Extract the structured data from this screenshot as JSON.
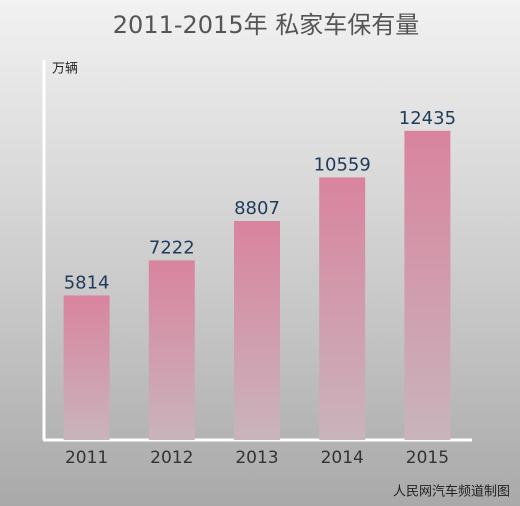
{
  "chart_data": {
    "type": "bar",
    "title": "2011-2015年 私家车保有量",
    "y_label": "万辆",
    "source": "人民网汽车频道制图",
    "categories": [
      "2011",
      "2012",
      "2013",
      "2014",
      "2015"
    ],
    "values": [
      5814,
      7222,
      8807,
      10559,
      12435
    ],
    "color": "#d9849f",
    "ylim": [
      0,
      15000
    ]
  }
}
